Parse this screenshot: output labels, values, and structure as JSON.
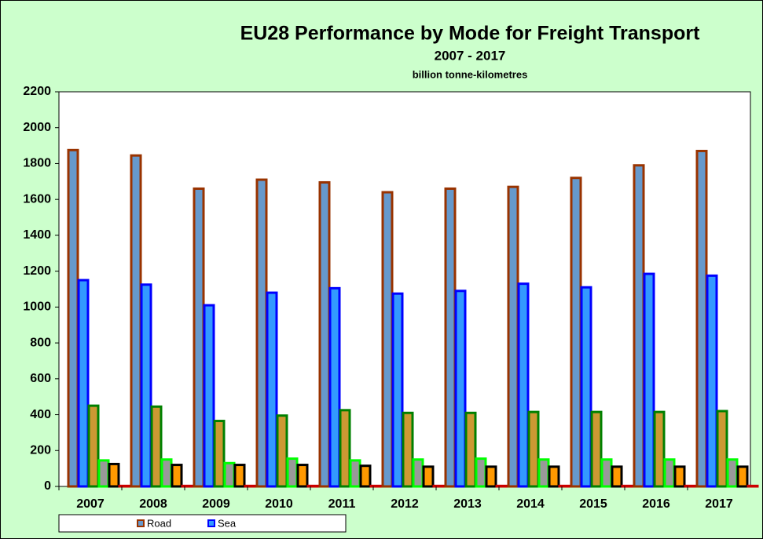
{
  "chart_data": {
    "type": "bar",
    "title": "EU28 Performance by Mode for Freight Transport",
    "subtitle": "2007 - 2017",
    "y_label": "billion tonne-kilometres",
    "categories": [
      "2007",
      "2008",
      "2009",
      "2010",
      "2011",
      "2012",
      "2013",
      "2014",
      "2015",
      "2016",
      "2017"
    ],
    "series": [
      {
        "name": "Road",
        "color": "#993300",
        "values": [
          1875,
          1845,
          1660,
          1710,
          1695,
          1640,
          1660,
          1670,
          1720,
          1790,
          1870
        ]
      },
      {
        "name": "Sea",
        "color": "#0000ff",
        "values": [
          1150,
          1125,
          1010,
          1080,
          1105,
          1075,
          1090,
          1130,
          1110,
          1185,
          1175
        ]
      },
      {
        "color": "#008000",
        "values": [
          450,
          445,
          365,
          395,
          425,
          410,
          410,
          415,
          415,
          415,
          420
        ]
      },
      {
        "color": "#00ff00",
        "values": [
          145,
          150,
          130,
          155,
          145,
          150,
          155,
          150,
          150,
          150,
          150
        ]
      },
      {
        "color": "#000000",
        "values": [
          125,
          120,
          120,
          120,
          115,
          110,
          110,
          110,
          110,
          110,
          110
        ]
      },
      {
        "color": "#cc0000",
        "values": [
          3,
          3,
          3,
          3,
          3,
          3,
          3,
          3,
          3,
          3,
          3
        ]
      }
    ],
    "ylim": [
      0,
      2200
    ],
    "yticks": [
      0,
      200,
      400,
      600,
      800,
      1000,
      1200,
      1400,
      1600,
      1800,
      2000,
      2200
    ],
    "grid": false
  }
}
